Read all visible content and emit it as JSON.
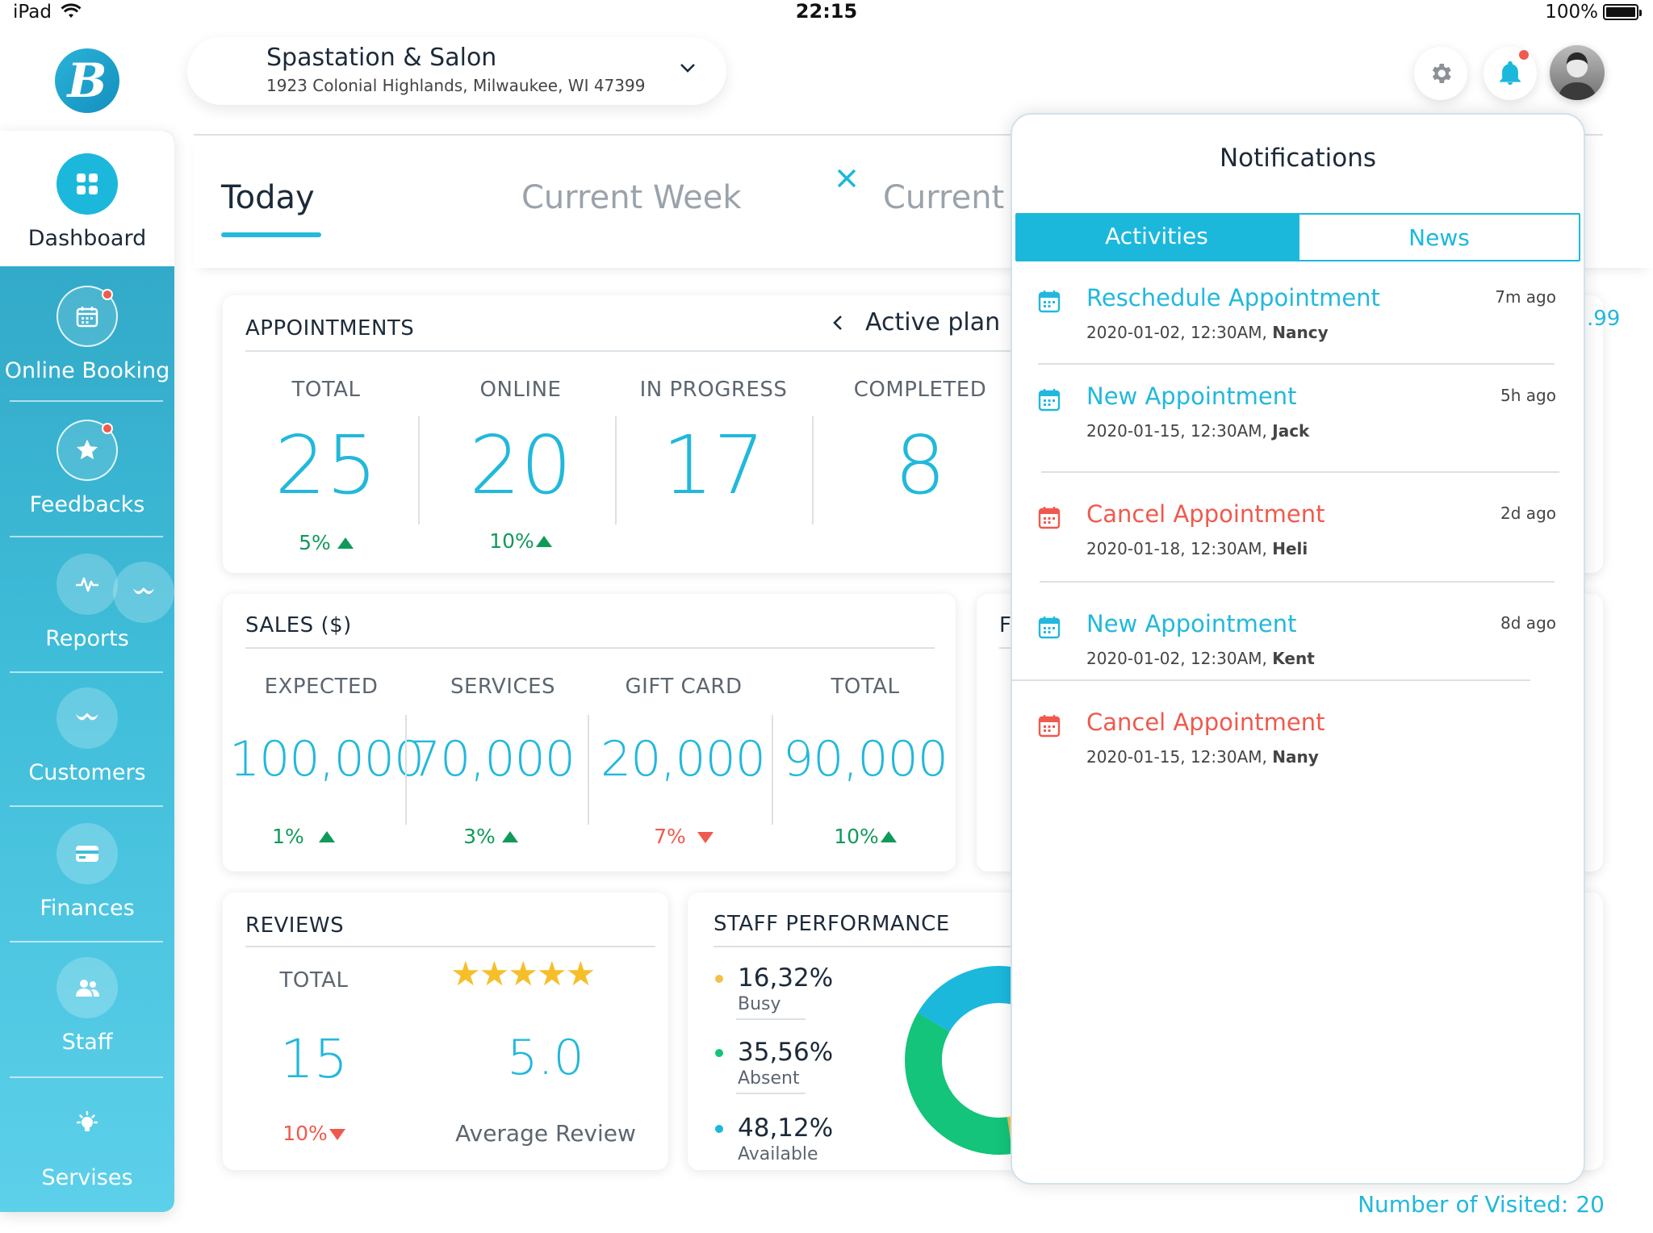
{
  "status_bar": {
    "device": "iPad",
    "time": "22:15",
    "battery": "100%"
  },
  "header": {
    "location_name": "Spastation & Salon",
    "location_address": "1923 Colonial Highlands, Milwaukee, WI 47399"
  },
  "sidebar": {
    "items": [
      {
        "label": "Dashboard",
        "icon": "dashboard-grid-icon"
      },
      {
        "label": "Online Booking",
        "icon": "calendar-icon"
      },
      {
        "label": "Feedbacks",
        "icon": "star-icon"
      },
      {
        "label": "Reports",
        "icon": "pulse-icon"
      },
      {
        "label": "Customers",
        "icon": "mustache-icon"
      },
      {
        "label": "Finances",
        "icon": "card-icon"
      },
      {
        "label": "Staff",
        "icon": "people-icon"
      },
      {
        "label": "Servises",
        "icon": "lightbulb-icon"
      }
    ]
  },
  "period_tabs": {
    "today": "Today",
    "week": "Current Week",
    "month": "Current"
  },
  "appointments": {
    "title": "APPOINTMENTS",
    "plan_label": "Active plan",
    "columns": [
      {
        "label": "TOTAL",
        "value": "25",
        "change": "5%",
        "trend": "up"
      },
      {
        "label": "ONLINE",
        "value": "20",
        "change": "10%",
        "trend": "up"
      },
      {
        "label": "IN PROGRESS",
        "value": "17"
      },
      {
        "label": "COMPLETED",
        "value": "8"
      }
    ],
    "clipped_value": ".99"
  },
  "sales": {
    "title": "SALES ($)",
    "columns": [
      {
        "label": "EXPECTED",
        "value": "100,000",
        "change": "1%",
        "trend": "up"
      },
      {
        "label": "SERVICES",
        "value": "70,000",
        "change": "3%",
        "trend": "up"
      },
      {
        "label": "GIFT CARD",
        "value": "20,000",
        "change": "7%",
        "trend": "down"
      },
      {
        "label": "TOTAL",
        "value": "90,000",
        "change": "10%",
        "trend": "up"
      }
    ],
    "side_card_letter": "F"
  },
  "reviews": {
    "title": "REVIEWS",
    "total_label": "TOTAL",
    "total_value": "15",
    "change": "10%",
    "trend": "down",
    "rating": "5.0",
    "rating_label": "Average Review",
    "stars": 5
  },
  "staff_performance": {
    "title": "STAFF PERFORMANCE",
    "items": [
      {
        "percent": "16,32%",
        "label": "Busy",
        "color": "#f4c04a"
      },
      {
        "percent": "35,56%",
        "label": "Absent",
        "color": "#13c47a"
      },
      {
        "percent": "48,12%",
        "label": "Available",
        "color": "#1bb8dc"
      }
    ]
  },
  "footer": {
    "visited": "Number of Visited: 20"
  },
  "notifications": {
    "title": "Notifications",
    "tabs": {
      "activities": "Activities",
      "news": "News"
    },
    "items": [
      {
        "title": "Reschedule Appointment",
        "date": "2020-01-02, 12:30AM,",
        "name": "Nancy",
        "time": "7m ago",
        "type": "info"
      },
      {
        "title": "New Appointment",
        "date": "2020-01-15, 12:30AM,",
        "name": "Jack",
        "time": "5h ago",
        "type": "info"
      },
      {
        "title": "Cancel Appointment",
        "date": "2020-01-18, 12:30AM,",
        "name": "Heli",
        "time": "2d ago",
        "type": "cancel"
      },
      {
        "title": "New Appointment",
        "date": "2020-01-02, 12:30AM,",
        "name": "Kent",
        "time": "8d ago",
        "type": "info"
      },
      {
        "title": "Cancel Appointment",
        "date": "2020-01-15, 12:30AM,",
        "name": "Nany",
        "time": "",
        "type": "cancel"
      }
    ]
  },
  "colors": {
    "accent": "#22b8dc",
    "cancel": "#f0594d",
    "up": "#109a5a"
  }
}
